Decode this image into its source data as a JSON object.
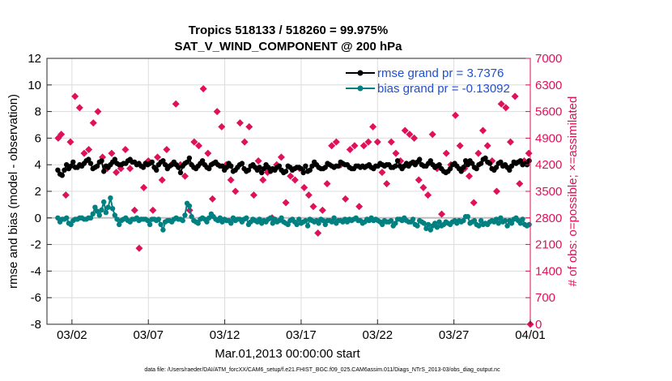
{
  "chart_data": {
    "type": "line",
    "title_line1": "Tropics 518133 / 518260 = 99.975%",
    "title_line2": "SAT_V_WIND_COMPONENT @ 200 hPa",
    "xlabel": "Mar.01,2013 00:00:00 start",
    "ylabel_left": "rmse and bias (model - observation)",
    "ylabel_right": "# of obs: o=possible; ×=assimilated",
    "xlim": [
      0,
      31
    ],
    "ylim_left": [
      -8,
      12
    ],
    "ylim_right": [
      0,
      7000
    ],
    "left_ticks": [
      "-8",
      "-6",
      "-4",
      "-2",
      "0",
      "2",
      "4",
      "6",
      "8",
      "10",
      "12"
    ],
    "right_ticks": [
      "0",
      "700",
      "1400",
      "2100",
      "2800",
      "3500",
      "4200",
      "4900",
      "5600",
      "6300",
      "7000"
    ],
    "x_ticks": [
      {
        "day": 1,
        "label": "03/02"
      },
      {
        "day": 6,
        "label": "03/07"
      },
      {
        "day": 11,
        "label": "03/12"
      },
      {
        "day": 16,
        "label": "03/17"
      },
      {
        "day": 21,
        "label": "03/22"
      },
      {
        "day": 26,
        "label": "03/27"
      },
      {
        "day": 31,
        "label": "04/01"
      }
    ],
    "zero_line": 0,
    "series": [
      {
        "name": "rmse grand pr = 3.7376",
        "axis": "left",
        "color": "#000000",
        "values": [
          3.6,
          3.3,
          3.2,
          3.6,
          4.0,
          3.7,
          3.9,
          4.2,
          3.8,
          3.8,
          4.0,
          3.9,
          4.1,
          4.3,
          4.4,
          4.1,
          3.7,
          3.8,
          3.9,
          4.2,
          4.3,
          3.5,
          3.9,
          3.8,
          4.0,
          4.2,
          4.4,
          4.1,
          4.0,
          4.0,
          4.1,
          4.1,
          4.3,
          4.4,
          4.2,
          4.2,
          4.0,
          4.1,
          3.9,
          3.8,
          4.1,
          4.0,
          4.1,
          4.2,
          3.8,
          3.6,
          4.0,
          4.2,
          4.3,
          4.0,
          3.7,
          3.9,
          4.0,
          4.2,
          4.0,
          3.8,
          3.4,
          3.9,
          4.1,
          4.2,
          4.5,
          4.0,
          3.8,
          3.7,
          3.9,
          4.1,
          4.3,
          4.0,
          3.8,
          3.7,
          4.0,
          4.1,
          4.2,
          4.0,
          3.9,
          3.9,
          3.6,
          3.8,
          4.1,
          3.9,
          3.5,
          3.6,
          3.8,
          4.0,
          4.1,
          3.7,
          3.5,
          3.6,
          3.9,
          4.0,
          3.8,
          3.6,
          3.8,
          3.4,
          3.7,
          4.0,
          3.8,
          3.5,
          3.7,
          3.6,
          3.8,
          3.9,
          3.6,
          3.4,
          3.5,
          3.9,
          3.8,
          3.6,
          3.7,
          3.8,
          3.8,
          3.7,
          3.4,
          3.9,
          3.5,
          3.6,
          3.9,
          4.2,
          4.0,
          3.8,
          3.7,
          3.7,
          3.8,
          4.1,
          4.0,
          3.9,
          3.8,
          3.9,
          3.9,
          4.2,
          4.1,
          4.0,
          4.0,
          3.8,
          3.7,
          3.7,
          3.9,
          3.9,
          3.8,
          3.9,
          3.8,
          3.9,
          4.0,
          3.8,
          3.7,
          3.9,
          3.9,
          4.1,
          4.0,
          3.9,
          4.0,
          4.0,
          3.8,
          3.8,
          3.9,
          4.3,
          3.9,
          3.7,
          3.9,
          4.1,
          3.9,
          4.1,
          4.2,
          4.0,
          4.2,
          4.4,
          4.0,
          3.9,
          3.9,
          4.1,
          4.3,
          4.0,
          3.8,
          3.9,
          4.0,
          3.7,
          3.5,
          3.4,
          3.5,
          3.7,
          4.0,
          4.1,
          3.9,
          3.7,
          3.5,
          3.8,
          4.3,
          4.0,
          4.3,
          4.1,
          3.8,
          3.7,
          4.0,
          4.1,
          4.4,
          4.5,
          4.2,
          4.1,
          3.7,
          3.6,
          3.8,
          4.1,
          4.2,
          3.9,
          4.0,
          3.8,
          3.6,
          3.9,
          4.2,
          4.1,
          4.2,
          4.3,
          4.0,
          4.1,
          4.0,
          4.3
        ]
      },
      {
        "name": "bias grand pr = -0.13092",
        "axis": "left",
        "color": "#008080",
        "values": [
          0.0,
          -0.3,
          -0.1,
          -0.1,
          0.0,
          -0.4,
          -0.5,
          -0.2,
          -0.1,
          -0.1,
          0.0,
          0.0,
          -0.1,
          -0.1,
          0.0,
          0.0,
          0.3,
          0.8,
          0.5,
          0.2,
          0.6,
          1.2,
          0.4,
          0.8,
          1.5,
          0.7,
          0.2,
          -0.1,
          -0.5,
          -0.2,
          -0.1,
          0.0,
          -0.2,
          -0.3,
          -0.1,
          -0.1,
          0.0,
          -0.2,
          -0.1,
          -0.1,
          -0.1,
          -0.2,
          -0.5,
          -0.1,
          -0.1,
          -0.2,
          -0.1,
          -0.5,
          -0.9,
          -0.3,
          -0.2,
          -0.2,
          -0.3,
          -0.1,
          0.0,
          -0.1,
          -0.1,
          -0.2,
          0.2,
          1.1,
          0.9,
          0.1,
          -0.2,
          -0.3,
          -0.4,
          -0.1,
          0.0,
          -0.1,
          -0.3,
          0.0,
          0.3,
          0.1,
          -0.1,
          -0.2,
          0.0,
          -0.3,
          -0.1,
          -0.2,
          -0.2,
          -0.4,
          0.0,
          -0.2,
          -0.1,
          -0.1,
          -0.3,
          -0.1,
          0.0,
          -0.5,
          -0.3,
          -0.1,
          -0.2,
          -0.3,
          -0.1,
          -0.4,
          -0.2,
          -0.3,
          -0.1,
          0.0,
          -0.4,
          -0.1,
          -0.3,
          -0.2,
          0.0,
          -0.3,
          -0.4,
          -0.5,
          -0.2,
          -0.1,
          -0.3,
          -0.5,
          -0.1,
          -0.4,
          -0.3,
          -0.2,
          -0.6,
          -0.1,
          -0.2,
          -0.3,
          -0.2,
          -0.4,
          -0.1,
          -0.2,
          -0.5,
          -0.2,
          -0.2,
          -0.3,
          0.0,
          -0.4,
          -0.2,
          -0.2,
          -0.3,
          -0.1,
          -0.3,
          -0.1,
          -0.2,
          -0.1,
          0.0,
          -0.2,
          -0.2,
          -0.4,
          -0.3,
          -0.1,
          -0.2,
          0.0,
          -0.2,
          -0.1,
          -0.2,
          -0.3,
          -0.5,
          -0.2,
          -0.3,
          -0.3,
          -0.2,
          -0.6,
          -0.4,
          -0.1,
          -0.1,
          -0.2,
          0.0,
          -0.2,
          -0.3,
          -0.3,
          -0.1,
          -0.5,
          -0.6,
          -0.2,
          -0.3,
          -0.4,
          -0.8,
          -0.5,
          -0.9,
          -0.6,
          -0.4,
          -0.7,
          -0.3,
          -0.6,
          -0.5,
          -0.3,
          -0.4,
          -0.5,
          -0.3,
          -0.2,
          -0.4,
          -0.2,
          -0.3,
          -0.2,
          0.1,
          0.1,
          -0.4,
          -0.3,
          -0.2,
          -0.5,
          -0.6,
          -0.2,
          -0.5,
          -0.4,
          -0.5,
          -0.3,
          -0.2,
          -0.3,
          -0.1,
          -0.4,
          0.0,
          -0.3,
          -0.2,
          -0.6,
          -0.2,
          -0.4,
          -0.1,
          0.0,
          -0.2,
          -0.4,
          -0.1,
          -0.5,
          -0.6,
          -0.5
        ]
      },
      {
        "name": "# of obs assimilated",
        "axis": "right",
        "color": "#e0105a",
        "points": [
          [
            0.1,
            4900
          ],
          [
            0.3,
            5000
          ],
          [
            0.6,
            3400
          ],
          [
            0.9,
            4800
          ],
          [
            1.2,
            6000
          ],
          [
            1.5,
            5700
          ],
          [
            1.8,
            4500
          ],
          [
            2.1,
            4600
          ],
          [
            2.4,
            5300
          ],
          [
            2.7,
            5600
          ],
          [
            3.0,
            4400
          ],
          [
            3.3,
            4100
          ],
          [
            3.6,
            4500
          ],
          [
            3.9,
            4000
          ],
          [
            4.2,
            4100
          ],
          [
            4.5,
            4600
          ],
          [
            4.8,
            4100
          ],
          [
            5.1,
            3000
          ],
          [
            5.4,
            2000
          ],
          [
            5.7,
            3600
          ],
          [
            6.0,
            4300
          ],
          [
            6.3,
            3000
          ],
          [
            6.6,
            4400
          ],
          [
            6.9,
            3800
          ],
          [
            7.2,
            4600
          ],
          [
            7.5,
            4200
          ],
          [
            7.8,
            5800
          ],
          [
            8.1,
            4200
          ],
          [
            8.4,
            3900
          ],
          [
            8.7,
            3000
          ],
          [
            9.0,
            4800
          ],
          [
            9.3,
            4700
          ],
          [
            9.6,
            6200
          ],
          [
            9.9,
            4500
          ],
          [
            10.2,
            3300
          ],
          [
            10.5,
            5600
          ],
          [
            10.8,
            5200
          ],
          [
            11.1,
            4200
          ],
          [
            11.4,
            3800
          ],
          [
            11.7,
            3500
          ],
          [
            12.0,
            5300
          ],
          [
            12.3,
            4800
          ],
          [
            12.6,
            5200
          ],
          [
            12.9,
            3400
          ],
          [
            13.2,
            4300
          ],
          [
            13.5,
            3800
          ],
          [
            13.8,
            4000
          ],
          [
            14.1,
            2800
          ],
          [
            14.4,
            4200
          ],
          [
            14.7,
            4400
          ],
          [
            15.0,
            3200
          ],
          [
            15.3,
            3900
          ],
          [
            15.6,
            3800
          ],
          [
            15.9,
            4100
          ],
          [
            16.2,
            3600
          ],
          [
            16.5,
            3400
          ],
          [
            16.8,
            3100
          ],
          [
            17.1,
            2400
          ],
          [
            17.4,
            3000
          ],
          [
            17.7,
            3700
          ],
          [
            18.0,
            4700
          ],
          [
            18.3,
            4800
          ],
          [
            18.6,
            4200
          ],
          [
            18.9,
            3300
          ],
          [
            19.2,
            4600
          ],
          [
            19.5,
            4700
          ],
          [
            19.8,
            3100
          ],
          [
            20.1,
            4700
          ],
          [
            20.4,
            4800
          ],
          [
            20.7,
            5200
          ],
          [
            21.0,
            4800
          ],
          [
            21.3,
            4000
          ],
          [
            21.6,
            3700
          ],
          [
            21.9,
            4800
          ],
          [
            22.2,
            4500
          ],
          [
            22.5,
            4300
          ],
          [
            22.8,
            5100
          ],
          [
            23.1,
            5000
          ],
          [
            23.4,
            4900
          ],
          [
            23.7,
            3800
          ],
          [
            24.0,
            3600
          ],
          [
            24.3,
            3400
          ],
          [
            24.6,
            5000
          ],
          [
            24.9,
            4100
          ],
          [
            25.2,
            2900
          ],
          [
            25.5,
            4500
          ],
          [
            25.8,
            4200
          ],
          [
            26.1,
            5500
          ],
          [
            26.4,
            4700
          ],
          [
            26.7,
            4100
          ],
          [
            27.0,
            3900
          ],
          [
            27.3,
            3200
          ],
          [
            27.6,
            4500
          ],
          [
            27.9,
            5100
          ],
          [
            28.2,
            4700
          ],
          [
            28.5,
            4300
          ],
          [
            28.8,
            3500
          ],
          [
            29.1,
            5800
          ],
          [
            29.4,
            5700
          ],
          [
            29.7,
            4800
          ],
          [
            30.0,
            6000
          ],
          [
            30.3,
            3700
          ],
          [
            30.6,
            4300
          ],
          [
            30.9,
            4500
          ]
        ]
      },
      {
        "name": "# of obs possible",
        "axis": "right",
        "color": "#e0105a",
        "points": [
          [
            31.0,
            0
          ]
        ]
      }
    ],
    "legend": {
      "position": "top-right",
      "entries": [
        "rmse grand pr = 3.7376",
        "bias grand pr = -0.13092"
      ]
    },
    "footnote": "data file: /Users/raeder/DAI/ATM_forcXX/CAM6_setup/f.e21.FHIST_BGC.f09_025.CAM6assim.011/Diags_NTrS_2013-03/obs_diag_output.nc"
  }
}
